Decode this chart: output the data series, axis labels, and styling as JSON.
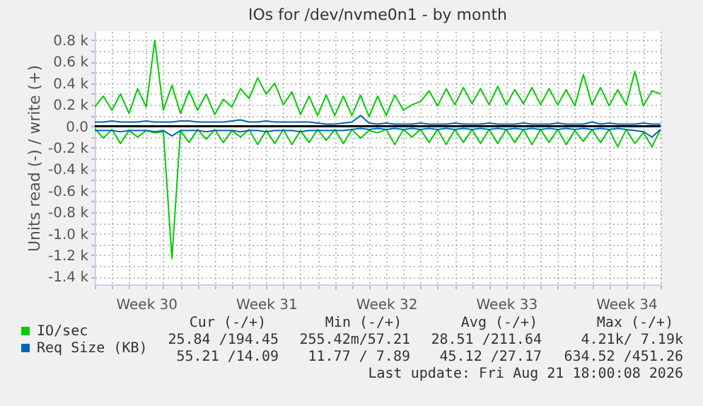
{
  "chart_data": {
    "type": "line",
    "title": "IOs for /dev/nvme0n1 - by month",
    "ylabel": "Units read (-) / write (+)",
    "categories": [
      null,
      null,
      null,
      null,
      null,
      null,
      "Week 30",
      null,
      null,
      null,
      null,
      null,
      null,
      null,
      null,
      null,
      null,
      null,
      null,
      null,
      "Week 31",
      null,
      null,
      null,
      null,
      null,
      null,
      null,
      null,
      null,
      null,
      null,
      null,
      null,
      "Week 32",
      null,
      null,
      null,
      null,
      null,
      null,
      null,
      null,
      null,
      null,
      null,
      null,
      null,
      "Week 33",
      null,
      null,
      null,
      null,
      null,
      null,
      null,
      null,
      null,
      null,
      null,
      null,
      null,
      "Week 34",
      null,
      null,
      null,
      null
    ],
    "series": [
      {
        "name": "IO/sec",
        "color": "#00cc00",
        "values": [
          180,
          280,
          150,
          300,
          120,
          350,
          180,
          800,
          150,
          380,
          120,
          330,
          150,
          300,
          110,
          250,
          180,
          350,
          260,
          450,
          300,
          400,
          200,
          320,
          110,
          280,
          100,
          290,
          100,
          280,
          100,
          290,
          90,
          280,
          100,
          290,
          150,
          200,
          230,
          330,
          190,
          350,
          200,
          360,
          210,
          350,
          200,
          370,
          200,
          340,
          210,
          360,
          200,
          350,
          200,
          340,
          190,
          480,
          200,
          360,
          190,
          340,
          200,
          510,
          190,
          330,
          300
        ]
      },
      {
        "color": "#00cc00",
        "values": [
          -20,
          -110,
          -30,
          -160,
          -40,
          -100,
          -40,
          -60,
          -50,
          -1230,
          -40,
          -150,
          -30,
          -120,
          -30,
          -150,
          -40,
          -100,
          -30,
          -170,
          -40,
          -160,
          -30,
          -170,
          -40,
          -150,
          -30,
          -130,
          -30,
          -160,
          -30,
          -110,
          -40,
          -60,
          -30,
          -170,
          -30,
          -100,
          -30,
          -150,
          -30,
          -170,
          -30,
          -150,
          -30,
          -160,
          -30,
          -160,
          -30,
          -150,
          -30,
          -170,
          -30,
          -150,
          -30,
          -170,
          -40,
          -140,
          -30,
          -150,
          -30,
          -190,
          -30,
          -160,
          -60,
          -190,
          -30
        ]
      },
      {
        "name": "Req Size (KB)",
        "color": "#0066b3",
        "values": [
          40,
          40,
          50,
          40,
          40,
          40,
          50,
          40,
          40,
          40,
          50,
          50,
          40,
          40,
          40,
          40,
          50,
          60,
          40,
          40,
          50,
          40,
          40,
          40,
          40,
          40,
          30,
          20,
          20,
          30,
          40,
          100,
          30,
          20,
          30,
          20,
          20,
          20,
          30,
          20,
          20,
          20,
          30,
          20,
          20,
          20,
          30,
          20,
          20,
          20,
          30,
          20,
          20,
          20,
          30,
          20,
          20,
          20,
          40,
          20,
          30,
          20,
          20,
          20,
          30,
          20,
          20
        ]
      },
      {
        "color": "#0066b3",
        "values": [
          -40,
          -40,
          -40,
          -50,
          -40,
          -40,
          -40,
          -50,
          -40,
          -90,
          -40,
          -40,
          -40,
          -50,
          -40,
          -40,
          -40,
          -50,
          -40,
          -40,
          -50,
          -40,
          -40,
          -40,
          -50,
          -40,
          -40,
          -40,
          -40,
          -40,
          -30,
          -20,
          -30,
          -20,
          -30,
          -20,
          -30,
          -20,
          -30,
          -20,
          -30,
          -20,
          -30,
          -20,
          -30,
          -20,
          -30,
          -20,
          -30,
          -20,
          -30,
          -20,
          -30,
          -20,
          -30,
          -20,
          -30,
          -20,
          -30,
          -20,
          -30,
          -20,
          -30,
          -40,
          -50,
          -100,
          -30
        ]
      }
    ],
    "ylim": [
      -1470,
      885
    ],
    "yticks": [
      {
        "value": -1400,
        "label": "-1.4 k"
      },
      {
        "value": -1300,
        "label": null
      },
      {
        "value": -1200,
        "label": "-1.2 k"
      },
      {
        "value": -1100,
        "label": null
      },
      {
        "value": -1000,
        "label": "-1.0 k"
      },
      {
        "value": -900,
        "label": null
      },
      {
        "value": -800,
        "label": "-0.8 k"
      },
      {
        "value": -700,
        "label": null
      },
      {
        "value": -600,
        "label": "-0.6 k"
      },
      {
        "value": -500,
        "label": null
      },
      {
        "value": -400,
        "label": "-0.4 k"
      },
      {
        "value": -300,
        "label": null
      },
      {
        "value": -200,
        "label": "-0.2 k"
      },
      {
        "value": -100,
        "label": null
      },
      {
        "value": 0,
        "label": "0.0"
      },
      {
        "value": 100,
        "label": null
      },
      {
        "value": 200,
        "label": "0.2 k"
      },
      {
        "value": 300,
        "label": null
      },
      {
        "value": 400,
        "label": "0.4 k"
      },
      {
        "value": 500,
        "label": null
      },
      {
        "value": 600,
        "label": "0.6 k"
      },
      {
        "value": 700,
        "label": null
      },
      {
        "value": 800,
        "label": "0.8 k"
      }
    ],
    "ref_lines": [
      {
        "axis": "y",
        "value": 0,
        "color": "#000000"
      }
    ],
    "grid": true,
    "legend": "bottom left",
    "annotations": [
      "Cur (-/+)",
      "Min (-/+)",
      "Avg (-/+)",
      "Max (-/+)",
      "25.84 /194.45",
      "255.42m/57.21",
      "28.51 /211.64",
      "4.21k/ 7.19k",
      "55.21 /14.09",
      "11.77 / 7.89",
      "45.12 /27.17",
      "634.52 /451.26",
      "Last update: Fri Aug 21 18:00:08 2026"
    ]
  }
}
